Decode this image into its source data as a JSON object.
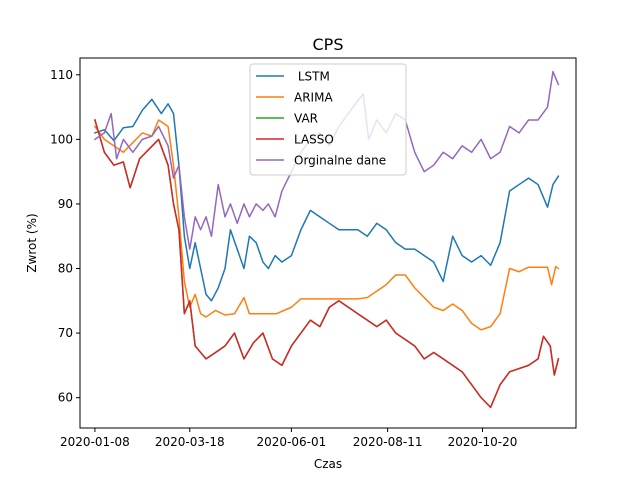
{
  "chart_data": {
    "type": "line",
    "title": "CPS",
    "xlabel": "Czas",
    "ylabel": "Zwrot (%)",
    "x_tick_labels": [
      "2020-01-08",
      "2020-03-18",
      "2020-06-01",
      "2020-08-11",
      "2020-10-20"
    ],
    "x_tick_dates": [
      "2020-01-08",
      "2020-03-18",
      "2020-06-01",
      "2020-08-11",
      "2020-10-20"
    ],
    "y_ticks": [
      60,
      70,
      80,
      90,
      100,
      110
    ],
    "xlim": [
      "2019-12-28",
      "2020-12-28"
    ],
    "ylim": [
      55.3,
      112.6
    ],
    "grid": false,
    "legend_position": "upper center",
    "series": [
      {
        "name": " LSTM",
        "color": "#1f77b4",
        "points": [
          [
            "2020-01-08",
            101
          ],
          [
            "2020-01-15",
            101.5
          ],
          [
            "2020-01-22",
            99.8
          ],
          [
            "2020-01-29",
            101.8
          ],
          [
            "2020-02-05",
            102
          ],
          [
            "2020-02-12",
            104.5
          ],
          [
            "2020-02-19",
            106.2
          ],
          [
            "2020-02-26",
            104
          ],
          [
            "2020-03-02",
            105.5
          ],
          [
            "2020-03-06",
            104
          ],
          [
            "2020-03-10",
            96
          ],
          [
            "2020-03-14",
            85
          ],
          [
            "2020-03-18",
            80
          ],
          [
            "2020-03-22",
            84
          ],
          [
            "2020-03-26",
            80
          ],
          [
            "2020-03-30",
            76
          ],
          [
            "2020-04-03",
            75
          ],
          [
            "2020-04-08",
            77
          ],
          [
            "2020-04-13",
            80
          ],
          [
            "2020-04-17",
            86
          ],
          [
            "2020-04-22",
            83
          ],
          [
            "2020-04-27",
            80
          ],
          [
            "2020-05-01",
            85
          ],
          [
            "2020-05-06",
            84
          ],
          [
            "2020-05-11",
            81
          ],
          [
            "2020-05-15",
            80
          ],
          [
            "2020-05-20",
            82
          ],
          [
            "2020-05-25",
            81
          ],
          [
            "2020-06-01",
            82
          ],
          [
            "2020-06-08",
            86
          ],
          [
            "2020-06-15",
            89
          ],
          [
            "2020-06-22",
            88
          ],
          [
            "2020-06-29",
            87
          ],
          [
            "2020-07-06",
            86
          ],
          [
            "2020-07-13",
            86
          ],
          [
            "2020-07-20",
            86
          ],
          [
            "2020-07-27",
            85
          ],
          [
            "2020-08-03",
            87
          ],
          [
            "2020-08-10",
            86
          ],
          [
            "2020-08-17",
            84
          ],
          [
            "2020-08-24",
            83
          ],
          [
            "2020-08-31",
            83
          ],
          [
            "2020-09-07",
            82
          ],
          [
            "2020-09-14",
            81
          ],
          [
            "2020-09-21",
            78
          ],
          [
            "2020-09-28",
            85
          ],
          [
            "2020-10-05",
            82
          ],
          [
            "2020-10-12",
            81
          ],
          [
            "2020-10-19",
            82
          ],
          [
            "2020-10-26",
            80.5
          ],
          [
            "2020-11-02",
            84
          ],
          [
            "2020-11-09",
            92
          ],
          [
            "2020-11-16",
            93
          ],
          [
            "2020-11-23",
            94
          ],
          [
            "2020-11-30",
            93
          ],
          [
            "2020-12-07",
            89.5
          ],
          [
            "2020-12-11",
            93
          ],
          [
            "2020-12-15",
            94.3
          ]
        ]
      },
      {
        "name": "ARIMA",
        "color": "#ff7f0e",
        "points": [
          [
            "2020-01-08",
            102
          ],
          [
            "2020-01-15",
            100
          ],
          [
            "2020-01-22",
            99
          ],
          [
            "2020-01-29",
            98
          ],
          [
            "2020-02-05",
            99.5
          ],
          [
            "2020-02-12",
            101
          ],
          [
            "2020-02-19",
            100.5
          ],
          [
            "2020-02-24",
            103
          ],
          [
            "2020-03-02",
            102
          ],
          [
            "2020-03-06",
            96
          ],
          [
            "2020-03-10",
            88
          ],
          [
            "2020-03-14",
            78
          ],
          [
            "2020-03-18",
            74
          ],
          [
            "2020-03-22",
            76
          ],
          [
            "2020-03-26",
            73
          ],
          [
            "2020-03-30",
            72.5
          ],
          [
            "2020-04-06",
            73.5
          ],
          [
            "2020-04-13",
            72.8
          ],
          [
            "2020-04-20",
            73
          ],
          [
            "2020-04-27",
            75.5
          ],
          [
            "2020-05-01",
            73
          ],
          [
            "2020-05-11",
            73
          ],
          [
            "2020-05-21",
            73
          ],
          [
            "2020-06-01",
            74
          ],
          [
            "2020-06-08",
            75.3
          ],
          [
            "2020-06-22",
            75.3
          ],
          [
            "2020-07-06",
            75.3
          ],
          [
            "2020-07-20",
            75.3
          ],
          [
            "2020-07-27",
            75.5
          ],
          [
            "2020-08-03",
            76.5
          ],
          [
            "2020-08-10",
            77.5
          ],
          [
            "2020-08-17",
            79
          ],
          [
            "2020-08-24",
            79
          ],
          [
            "2020-08-31",
            77
          ],
          [
            "2020-09-07",
            75.5
          ],
          [
            "2020-09-14",
            74
          ],
          [
            "2020-09-21",
            73.5
          ],
          [
            "2020-09-28",
            74.5
          ],
          [
            "2020-10-05",
            73.5
          ],
          [
            "2020-10-12",
            71.5
          ],
          [
            "2020-10-19",
            70.5
          ],
          [
            "2020-10-26",
            71
          ],
          [
            "2020-11-02",
            73
          ],
          [
            "2020-11-09",
            80
          ],
          [
            "2020-11-16",
            79.5
          ],
          [
            "2020-11-23",
            80.2
          ],
          [
            "2020-11-30",
            80.2
          ],
          [
            "2020-12-07",
            80.2
          ],
          [
            "2020-12-10",
            77.5
          ],
          [
            "2020-12-13",
            80.3
          ],
          [
            "2020-12-15",
            80
          ]
        ]
      },
      {
        "name": "VAR",
        "color": "#2ca02c",
        "points": [
          [
            "2020-01-08",
            103
          ],
          [
            "2020-01-15",
            98
          ],
          [
            "2020-01-22",
            96
          ],
          [
            "2020-01-29",
            96.5
          ],
          [
            "2020-02-03",
            92.5
          ],
          [
            "2020-02-10",
            97
          ],
          [
            "2020-02-17",
            98.5
          ],
          [
            "2020-02-24",
            100
          ],
          [
            "2020-03-02",
            96
          ],
          [
            "2020-03-06",
            90
          ],
          [
            "2020-03-10",
            86
          ],
          [
            "2020-03-14",
            73
          ],
          [
            "2020-03-18",
            75
          ],
          [
            "2020-03-22",
            68
          ],
          [
            "2020-03-26",
            67
          ],
          [
            "2020-03-30",
            66
          ],
          [
            "2020-04-06",
            67
          ],
          [
            "2020-04-13",
            68
          ],
          [
            "2020-04-20",
            70
          ],
          [
            "2020-04-27",
            66
          ],
          [
            "2020-05-04",
            68.5
          ],
          [
            "2020-05-11",
            70
          ],
          [
            "2020-05-18",
            66
          ],
          [
            "2020-05-25",
            65
          ],
          [
            "2020-06-01",
            68
          ],
          [
            "2020-06-08",
            70
          ],
          [
            "2020-06-15",
            72
          ],
          [
            "2020-06-22",
            71
          ],
          [
            "2020-06-29",
            74
          ],
          [
            "2020-07-06",
            75
          ],
          [
            "2020-07-13",
            74
          ],
          [
            "2020-07-20",
            73
          ],
          [
            "2020-07-27",
            72
          ],
          [
            "2020-08-03",
            71
          ],
          [
            "2020-08-10",
            72
          ],
          [
            "2020-08-17",
            70
          ],
          [
            "2020-08-24",
            69
          ],
          [
            "2020-08-31",
            68
          ],
          [
            "2020-09-07",
            66
          ],
          [
            "2020-09-14",
            67
          ],
          [
            "2020-09-21",
            66
          ],
          [
            "2020-09-28",
            65
          ],
          [
            "2020-10-05",
            64
          ],
          [
            "2020-10-12",
            62
          ],
          [
            "2020-10-19",
            60
          ],
          [
            "2020-10-26",
            58.5
          ],
          [
            "2020-11-02",
            62
          ],
          [
            "2020-11-09",
            64
          ],
          [
            "2020-11-16",
            64.5
          ],
          [
            "2020-11-23",
            65
          ],
          [
            "2020-11-30",
            66
          ],
          [
            "2020-12-04",
            69.5
          ],
          [
            "2020-12-09",
            68
          ],
          [
            "2020-12-12",
            63.5
          ],
          [
            "2020-12-15",
            66
          ]
        ]
      },
      {
        "name": "LASSO",
        "color": "#d62728",
        "points": [
          [
            "2020-01-08",
            103
          ],
          [
            "2020-01-15",
            98
          ],
          [
            "2020-01-22",
            96
          ],
          [
            "2020-01-29",
            96.5
          ],
          [
            "2020-02-03",
            92.5
          ],
          [
            "2020-02-10",
            97
          ],
          [
            "2020-02-17",
            98.5
          ],
          [
            "2020-02-24",
            100
          ],
          [
            "2020-03-02",
            96
          ],
          [
            "2020-03-06",
            90
          ],
          [
            "2020-03-10",
            86
          ],
          [
            "2020-03-14",
            73
          ],
          [
            "2020-03-18",
            75
          ],
          [
            "2020-03-22",
            68
          ],
          [
            "2020-03-26",
            67
          ],
          [
            "2020-03-30",
            66
          ],
          [
            "2020-04-06",
            67
          ],
          [
            "2020-04-13",
            68
          ],
          [
            "2020-04-20",
            70
          ],
          [
            "2020-04-27",
            66
          ],
          [
            "2020-05-04",
            68.5
          ],
          [
            "2020-05-11",
            70
          ],
          [
            "2020-05-18",
            66
          ],
          [
            "2020-05-25",
            65
          ],
          [
            "2020-06-01",
            68
          ],
          [
            "2020-06-08",
            70
          ],
          [
            "2020-06-15",
            72
          ],
          [
            "2020-06-22",
            71
          ],
          [
            "2020-06-29",
            74
          ],
          [
            "2020-07-06",
            75
          ],
          [
            "2020-07-13",
            74
          ],
          [
            "2020-07-20",
            73
          ],
          [
            "2020-07-27",
            72
          ],
          [
            "2020-08-03",
            71
          ],
          [
            "2020-08-10",
            72
          ],
          [
            "2020-08-17",
            70
          ],
          [
            "2020-08-24",
            69
          ],
          [
            "2020-08-31",
            68
          ],
          [
            "2020-09-07",
            66
          ],
          [
            "2020-09-14",
            67
          ],
          [
            "2020-09-21",
            66
          ],
          [
            "2020-09-28",
            65
          ],
          [
            "2020-10-05",
            64
          ],
          [
            "2020-10-12",
            62
          ],
          [
            "2020-10-19",
            60
          ],
          [
            "2020-10-26",
            58.5
          ],
          [
            "2020-11-02",
            62
          ],
          [
            "2020-11-09",
            64
          ],
          [
            "2020-11-16",
            64.5
          ],
          [
            "2020-11-23",
            65
          ],
          [
            "2020-11-30",
            66
          ],
          [
            "2020-12-04",
            69.5
          ],
          [
            "2020-12-09",
            68
          ],
          [
            "2020-12-12",
            63.5
          ],
          [
            "2020-12-15",
            66
          ]
        ]
      },
      {
        "name": "Orginalne dane",
        "color": "#9467bd",
        "points": [
          [
            "2020-01-08",
            100
          ],
          [
            "2020-01-15",
            101
          ],
          [
            "2020-01-20",
            104
          ],
          [
            "2020-01-24",
            97
          ],
          [
            "2020-01-29",
            100
          ],
          [
            "2020-02-05",
            98
          ],
          [
            "2020-02-12",
            100
          ],
          [
            "2020-02-19",
            100.5
          ],
          [
            "2020-02-24",
            102
          ],
          [
            "2020-03-02",
            99
          ],
          [
            "2020-03-06",
            94
          ],
          [
            "2020-03-10",
            96
          ],
          [
            "2020-03-14",
            88
          ],
          [
            "2020-03-18",
            83
          ],
          [
            "2020-03-22",
            88
          ],
          [
            "2020-03-26",
            86
          ],
          [
            "2020-03-30",
            88
          ],
          [
            "2020-04-03",
            85
          ],
          [
            "2020-04-08",
            93
          ],
          [
            "2020-04-13",
            88
          ],
          [
            "2020-04-17",
            90
          ],
          [
            "2020-04-22",
            87
          ],
          [
            "2020-04-27",
            90
          ],
          [
            "2020-05-01",
            88
          ],
          [
            "2020-05-06",
            90
          ],
          [
            "2020-05-11",
            89
          ],
          [
            "2020-05-15",
            90
          ],
          [
            "2020-05-20",
            88
          ],
          [
            "2020-05-25",
            92
          ],
          [
            "2020-06-01",
            95
          ],
          [
            "2020-06-08",
            98
          ],
          [
            "2020-06-15",
            100
          ],
          [
            "2020-06-22",
            101
          ],
          [
            "2020-06-29",
            99
          ],
          [
            "2020-07-06",
            102
          ],
          [
            "2020-07-13",
            104
          ],
          [
            "2020-07-20",
            106
          ],
          [
            "2020-07-24",
            107
          ],
          [
            "2020-07-28",
            100
          ],
          [
            "2020-08-03",
            103
          ],
          [
            "2020-08-10",
            101
          ],
          [
            "2020-08-17",
            104
          ],
          [
            "2020-08-24",
            103
          ],
          [
            "2020-08-31",
            98
          ],
          [
            "2020-09-07",
            95
          ],
          [
            "2020-09-14",
            96
          ],
          [
            "2020-09-21",
            98
          ],
          [
            "2020-09-28",
            97
          ],
          [
            "2020-10-05",
            99
          ],
          [
            "2020-10-12",
            98
          ],
          [
            "2020-10-19",
            100
          ],
          [
            "2020-10-26",
            97
          ],
          [
            "2020-11-02",
            98
          ],
          [
            "2020-11-09",
            102
          ],
          [
            "2020-11-16",
            101
          ],
          [
            "2020-11-23",
            103
          ],
          [
            "2020-11-30",
            103
          ],
          [
            "2020-12-07",
            105
          ],
          [
            "2020-12-11",
            110.5
          ],
          [
            "2020-12-15",
            108.5
          ]
        ]
      }
    ]
  }
}
